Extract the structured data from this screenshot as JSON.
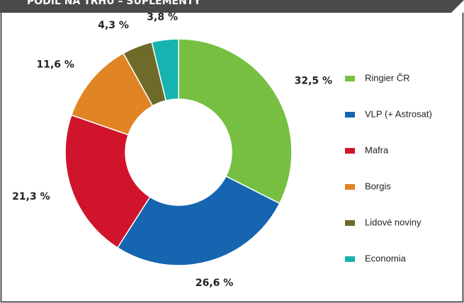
{
  "chart_data": {
    "type": "donut",
    "title": "PODÍL NA TRHU – SUPLEMENTY",
    "categories": [
      "Ringier ČR",
      "VLP (+ Astrosat)",
      "Mafra",
      "Borgis",
      "Lidové noviny",
      "Economia"
    ],
    "values": [
      32.5,
      26.6,
      21.3,
      11.6,
      4.3,
      3.8
    ],
    "value_labels": [
      "32,5 %",
      "26,6 %",
      "21,3 %",
      "11,6 %",
      "4,3 %",
      "3,8 %"
    ],
    "colors": [
      "#76bf43",
      "#1565b0",
      "#d0142c",
      "#e08424",
      "#6e6a2a",
      "#16b3b0"
    ]
  }
}
